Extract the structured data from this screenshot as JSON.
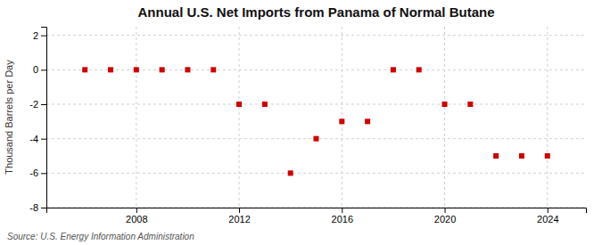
{
  "chart_data": {
    "type": "scatter",
    "title": "Annual U.S. Net Imports from Panama of Normal Butane",
    "y_label": "Thousand Barrels per Day",
    "source": "Source: U.S. Energy Information Administration",
    "x": [
      2006,
      2007,
      2008,
      2009,
      2010,
      2011,
      2012,
      2013,
      2014,
      2015,
      2016,
      2017,
      2018,
      2019,
      2020,
      2021,
      2022,
      2023,
      2024
    ],
    "values": [
      0,
      0,
      0,
      0,
      0,
      0,
      -2,
      -2,
      -6,
      -4,
      -3,
      -3,
      0,
      0,
      -2,
      -2,
      -5,
      -5,
      -5
    ],
    "color": "#cc0000",
    "marker": "square",
    "xlim": [
      2004.5,
      2025.5
    ],
    "xticks": [
      2008,
      2012,
      2016,
      2020,
      2024
    ],
    "ylim": [
      -8,
      2.5
    ],
    "yticks": [
      -8,
      -6,
      -4,
      -2,
      0,
      2
    ],
    "grid": true
  }
}
